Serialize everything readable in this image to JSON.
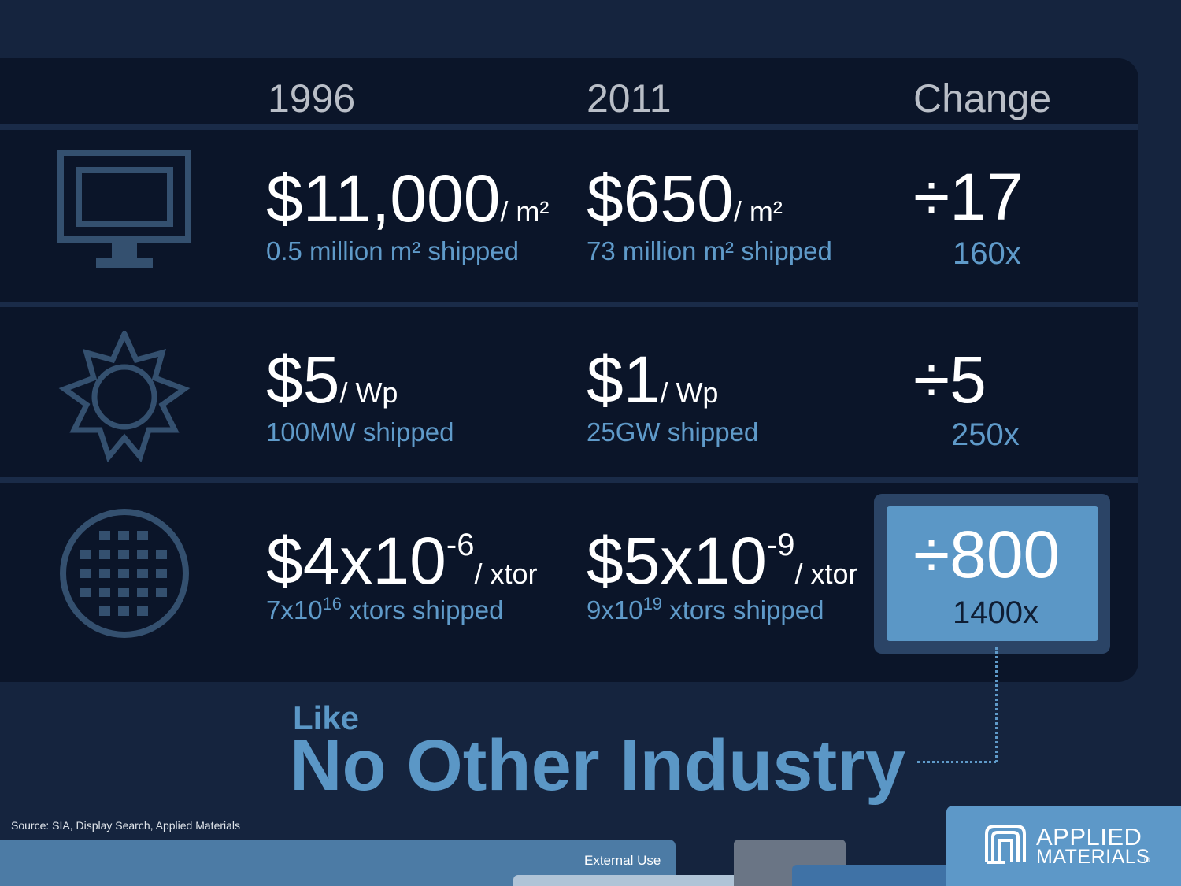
{
  "headers": {
    "col1": "1996",
    "col2": "2011",
    "col3": "Change"
  },
  "rows": [
    {
      "icon": "monitor-icon",
      "y1996": {
        "value": "$11,000",
        "unit": "/ m²",
        "sub": "0.5 million m² shipped"
      },
      "y2011": {
        "value": "$650",
        "unit": "/ m²",
        "sub": "73 million m² shipped"
      },
      "change": "÷17",
      "multiplier": "160x"
    },
    {
      "icon": "sun-icon",
      "y1996": {
        "value": "$5",
        "unit": "/ Wp",
        "sub": "100MW shipped"
      },
      "y2011": {
        "value": "$1",
        "unit": "/ Wp",
        "sub": "25GW shipped"
      },
      "change": "÷5",
      "multiplier": "250x"
    },
    {
      "icon": "wafer-icon",
      "y1996": {
        "value_base": "$4x10",
        "value_exp": "-6",
        "unit": "/ xtor",
        "sub_base": "7x10",
        "sub_exp": "16",
        "sub_text": "xtors shipped"
      },
      "y2011": {
        "value_base": "$5x10",
        "value_exp": "-9",
        "unit": "/ xtor",
        "sub_base": "9x10",
        "sub_exp": "19",
        "sub_text": "xtors shipped"
      },
      "change": "÷800",
      "multiplier": "1400x"
    }
  ],
  "tagline": {
    "small": "Like",
    "big": "No Other Industry"
  },
  "source": "Source: SIA,  Display Search, Applied Materials",
  "footer": {
    "classification": "External Use"
  },
  "logo": {
    "line1": "APPLIED",
    "line2": "MATERIALS",
    "mark": "®"
  },
  "colors": {
    "accent": "#5b97c6",
    "panel": "#0b1529",
    "background": "#15243e"
  }
}
